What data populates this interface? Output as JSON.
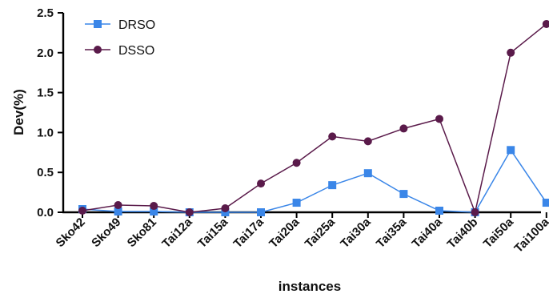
{
  "chart_data": {
    "type": "line",
    "title": "",
    "xlabel": "instances",
    "ylabel": "Dev(%)",
    "categories": [
      "Sko42",
      "Sko49",
      "Sko81",
      "Tai12a",
      "Tai15a",
      "Tai17a",
      "Tai20a",
      "Tai25a",
      "Tai30a",
      "Tai35a",
      "Tai40a",
      "Tai40b",
      "Tai50a",
      "Tai100a"
    ],
    "ylim": [
      0,
      2.5
    ],
    "yticks": [
      "0.0",
      "0.5",
      "1.0",
      "1.5",
      "2.0",
      "2.5"
    ],
    "grid": false,
    "legend_position": "top-left",
    "series": [
      {
        "name": "DRSO",
        "color": "#3a86e8",
        "marker": "square",
        "values": [
          0.04,
          0.01,
          0.01,
          0.0,
          0.0,
          0.0,
          0.12,
          0.34,
          0.49,
          0.23,
          0.02,
          0.0,
          0.78,
          0.12
        ]
      },
      {
        "name": "DSSO",
        "color": "#5a1a4a",
        "marker": "circle",
        "values": [
          0.02,
          0.09,
          0.08,
          0.0,
          0.05,
          0.36,
          0.62,
          0.95,
          0.89,
          1.05,
          1.17,
          0.0,
          2.0,
          2.36
        ]
      }
    ]
  }
}
